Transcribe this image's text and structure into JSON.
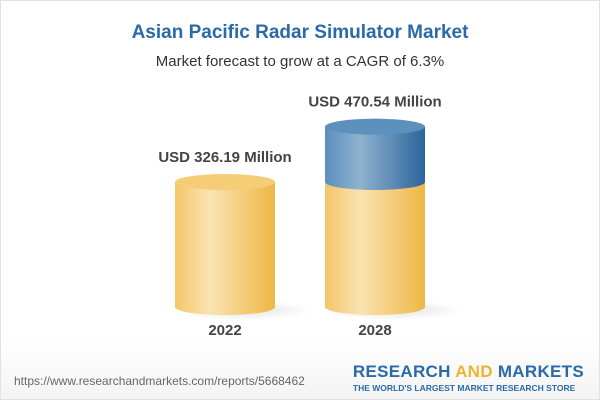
{
  "title": "Asian Pacific Radar Simulator Market",
  "subtitle": "Market forecast to grow at a CAGR of 6.3%",
  "chart_data": {
    "type": "bar",
    "style": "3d-cylinder",
    "categories": [
      "2022",
      "2028"
    ],
    "values": [
      326.19,
      470.54
    ],
    "data_labels": [
      "USD 326.19 Million",
      "USD 470.54 Million"
    ],
    "title": "Asian Pacific Radar Simulator Market",
    "subtitle": "Market forecast to grow at a CAGR of 6.3%",
    "colors": {
      "base": "#f2c057",
      "growth": "#3f7db3"
    },
    "grid": false
  },
  "footer": {
    "url": "https://www.researchandmarkets.com/reports/5668462",
    "logo_part1": "RESEARCH ",
    "logo_part2": "AND",
    "logo_part3": " MARKETS",
    "tagline": "THE WORLD'S LARGEST MARKET RESEARCH STORE"
  }
}
